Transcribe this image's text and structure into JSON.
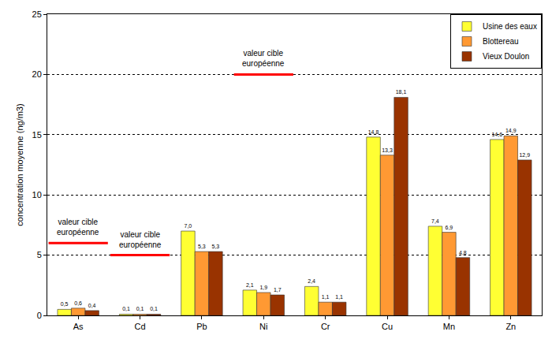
{
  "chart_data": {
    "type": "bar",
    "categories": [
      "As",
      "Cd",
      "Pb",
      "Ni",
      "Cr",
      "Cu",
      "Mn",
      "Zn"
    ],
    "series": [
      {
        "name": "Usine des eaux",
        "color": "#ffff33",
        "values": [
          0.5,
          0.1,
          7.0,
          2.1,
          2.4,
          14.8,
          7.4,
          14.6
        ],
        "value_labels": [
          "0,5",
          "0,1",
          "7,0",
          "2,1",
          "2,4",
          "14,8",
          "7,4",
          "14,6"
        ]
      },
      {
        "name": "Blottereau",
        "color": "#ff9933",
        "values": [
          0.6,
          0.1,
          5.3,
          1.9,
          1.1,
          13.3,
          6.9,
          14.9
        ],
        "value_labels": [
          "0,6",
          "0,1",
          "5,3",
          "1,9",
          "1,1",
          "13,3",
          "6,9",
          "14,9"
        ]
      },
      {
        "name": "Vieux Doulon",
        "color": "#993300",
        "values": [
          0.4,
          0.1,
          5.3,
          1.7,
          1.1,
          18.1,
          4.8,
          12.9
        ],
        "value_labels": [
          "0,4",
          "0,1",
          "5,3",
          "1,7",
          "1,1",
          "18,1",
          "4,8",
          "12,9"
        ]
      }
    ],
    "y_label": "concentration moyenne (ng/m3)",
    "ylim": [
      0,
      25
    ],
    "yticks": [
      0,
      5,
      10,
      15,
      20,
      25
    ],
    "grid": true,
    "legend": "top-right",
    "data_labels": true,
    "target_lines": [
      {
        "category": "As",
        "value": 6,
        "label": "valeur cible européenne"
      },
      {
        "category": "Cd",
        "value": 5,
        "label": "valeur cible européenne"
      },
      {
        "category": "Ni",
        "value": 20,
        "label": "valeur cible européenne"
      }
    ]
  }
}
